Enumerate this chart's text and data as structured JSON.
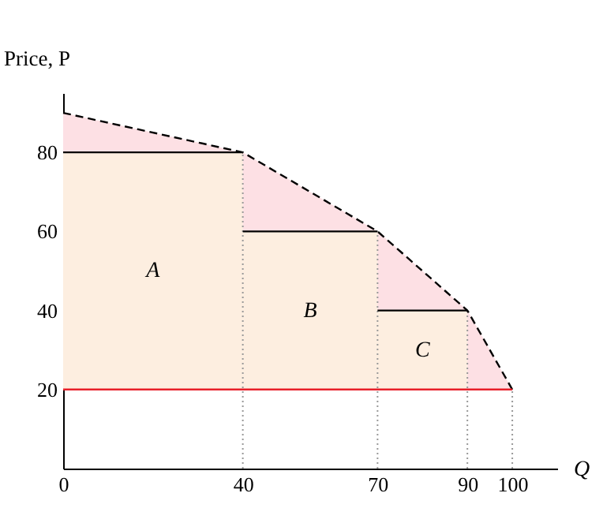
{
  "chart_data": {
    "type": "line",
    "ylabel": "Price, P",
    "xlabel": "Q",
    "xlim": [
      0,
      110
    ],
    "ylim": [
      0,
      95
    ],
    "xticks": [
      0,
      40,
      70,
      90,
      100
    ],
    "yticks": [
      20,
      40,
      60,
      80
    ],
    "series": [
      {
        "type": "area",
        "color": "#fde0e4",
        "line_style": "dashed",
        "x": [
          0,
          40,
          70,
          90,
          100
        ],
        "values": [
          90,
          80,
          60,
          40,
          20
        ]
      },
      {
        "type": "area",
        "color": "#fdeee0",
        "line_style": "solid",
        "x": [
          0,
          40,
          40,
          70,
          70,
          90
        ],
        "values": [
          80,
          80,
          60,
          60,
          40,
          40
        ]
      },
      {
        "color": "#e8202a",
        "line_style": "solid",
        "x": [
          0,
          100
        ],
        "values": [
          20,
          20
        ]
      }
    ],
    "ref_lines": [
      {
        "axis": "x",
        "value": 40,
        "color": "#999999",
        "line_style": "dotted"
      },
      {
        "axis": "x",
        "value": 70,
        "color": "#999999",
        "line_style": "dotted"
      },
      {
        "axis": "x",
        "value": 90,
        "color": "#999999",
        "line_style": "dotted"
      },
      {
        "axis": "x",
        "value": 100,
        "color": "#999999",
        "line_style": "dotted"
      }
    ],
    "annotations": [
      "A",
      "B",
      "C"
    ]
  }
}
